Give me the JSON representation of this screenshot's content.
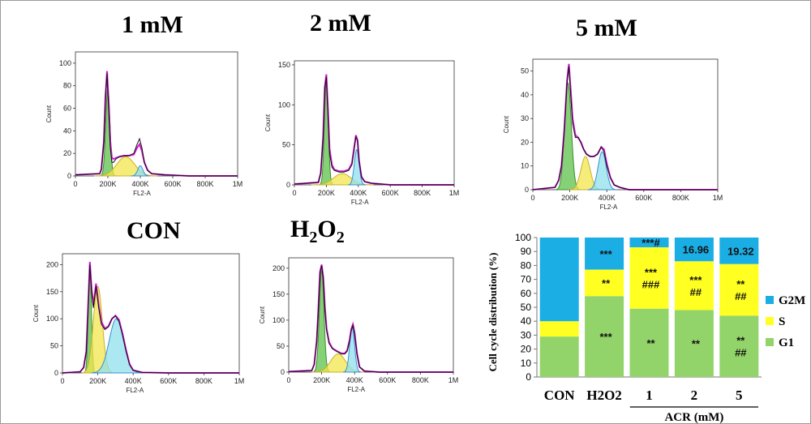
{
  "chart_data": [
    {
      "type": "histogram",
      "id": "h1",
      "title": "1 mM",
      "xlabel": "FL2-A",
      "ylabel": "Count",
      "xlim": [
        0,
        1000000
      ],
      "ylim": [
        0,
        110
      ],
      "xticks": [
        0,
        200000,
        400000,
        600000,
        800000,
        1000000
      ],
      "xtick_labels": [
        "0",
        "200K",
        "400K",
        "600K",
        "800K",
        "1M"
      ],
      "yticks": [
        0,
        20,
        40,
        60,
        80,
        100
      ],
      "ytick_labels": [
        "0",
        "20",
        "40",
        "60",
        "80",
        "100"
      ],
      "x": [
        0,
        150000,
        160000,
        175000,
        185000,
        195000,
        205000,
        215000,
        225000,
        235000,
        250000,
        270000,
        300000,
        330000,
        360000,
        380000,
        395000,
        410000,
        425000,
        445000,
        470000,
        550000,
        700000,
        1000000
      ],
      "counts": [
        1,
        2,
        6,
        30,
        70,
        91,
        60,
        25,
        12,
        12,
        15,
        17,
        18,
        18,
        20,
        28,
        33,
        25,
        12,
        5,
        2,
        1,
        0,
        0
      ],
      "fit_total": [
        1,
        2,
        6,
        30,
        70,
        93,
        64,
        30,
        16,
        15,
        16,
        17,
        18,
        18,
        19,
        25,
        28,
        22,
        12,
        5,
        2,
        1,
        0,
        0
      ],
      "g1": {
        "mean": 200000,
        "sd": 13000,
        "peak": 78
      },
      "s": {
        "mean": 310000,
        "sd": 55000,
        "peak": 17
      },
      "g2m": {
        "mean": 400000,
        "sd": 16000,
        "peak": 9
      }
    },
    {
      "type": "histogram",
      "id": "h2",
      "title": "2 mM",
      "xlabel": "FL2-A",
      "ylabel": "Count",
      "xlim": [
        0,
        1000000
      ],
      "ylim": [
        0,
        155
      ],
      "xticks": [
        0,
        200000,
        400000,
        600000,
        800000,
        1000000
      ],
      "xtick_labels": [
        "0",
        "200K",
        "400K",
        "600K",
        "800K",
        "1M"
      ],
      "yticks": [
        0,
        50,
        100,
        150
      ],
      "ytick_labels": [
        "0",
        "50",
        "100",
        "150"
      ],
      "x": [
        0,
        150000,
        165000,
        180000,
        190000,
        200000,
        210000,
        220000,
        235000,
        250000,
        280000,
        310000,
        340000,
        360000,
        375000,
        385000,
        395000,
        405000,
        420000,
        440000,
        480000,
        600000,
        1000000
      ],
      "counts": [
        1,
        3,
        15,
        60,
        120,
        135,
        90,
        40,
        22,
        18,
        16,
        16,
        18,
        25,
        45,
        60,
        55,
        30,
        10,
        4,
        2,
        0,
        0
      ],
      "fit_total": [
        1,
        3,
        15,
        60,
        122,
        138,
        95,
        45,
        25,
        19,
        17,
        17,
        19,
        27,
        48,
        62,
        56,
        30,
        10,
        4,
        2,
        0,
        0
      ],
      "g1": {
        "mean": 200000,
        "sd": 12000,
        "peak": 128
      },
      "s": {
        "mean": 300000,
        "sd": 55000,
        "peak": 14
      },
      "g2m": {
        "mean": 390000,
        "sd": 15000,
        "peak": 44
      }
    },
    {
      "type": "histogram",
      "id": "h5",
      "title": "5 mM",
      "xlabel": "FL2-A",
      "ylabel": "Count",
      "xlim": [
        0,
        1000000
      ],
      "ylim": [
        0,
        55
      ],
      "xticks": [
        0,
        200000,
        400000,
        600000,
        800000,
        1000000
      ],
      "xtick_labels": [
        "0",
        "200K",
        "400K",
        "600K",
        "800K",
        "1M"
      ],
      "yticks": [
        0,
        10,
        20,
        30,
        40,
        50
      ],
      "ytick_labels": [
        "0",
        "10",
        "20",
        "30",
        "40",
        "50"
      ],
      "x": [
        0,
        120000,
        140000,
        155000,
        170000,
        185000,
        195000,
        205000,
        215000,
        230000,
        245000,
        260000,
        275000,
        290000,
        310000,
        330000,
        350000,
        370000,
        385000,
        400000,
        420000,
        440000,
        470000,
        520000,
        650000,
        1000000
      ],
      "counts": [
        0,
        1,
        4,
        10,
        25,
        45,
        52,
        40,
        28,
        22,
        22,
        20,
        17,
        15,
        14,
        14,
        15,
        18,
        16,
        10,
        5,
        2,
        1,
        0,
        0,
        0
      ],
      "fit_total": [
        0,
        1,
        4,
        10,
        25,
        46,
        53,
        42,
        30,
        23,
        22,
        20,
        17,
        15,
        14,
        14,
        15,
        18,
        17,
        11,
        5,
        2,
        1,
        0,
        0,
        0
      ],
      "g1": {
        "mean": 190000,
        "sd": 18000,
        "peak": 45
      },
      "s": {
        "mean": 285000,
        "sd": 25000,
        "peak": 14
      },
      "g2m": {
        "mean": 375000,
        "sd": 22000,
        "peak": 16
      }
    },
    {
      "type": "histogram",
      "id": "hcon",
      "title": "CON",
      "xlabel": "FL2-A",
      "ylabel": "Count",
      "xlim": [
        0,
        1000000
      ],
      "ylim": [
        0,
        220
      ],
      "xticks": [
        0,
        200000,
        400000,
        600000,
        800000,
        1000000
      ],
      "xtick_labels": [
        "0",
        "200K",
        "400K",
        "600K",
        "800K",
        "1M"
      ],
      "yticks": [
        0,
        50,
        100,
        150,
        200
      ],
      "ytick_labels": [
        "0",
        "50",
        "100",
        "150",
        "200"
      ],
      "x": [
        0,
        100000,
        120000,
        135000,
        145000,
        155000,
        165000,
        175000,
        190000,
        205000,
        220000,
        240000,
        260000,
        280000,
        300000,
        320000,
        340000,
        360000,
        380000,
        400000,
        450000,
        600000,
        1000000
      ],
      "counts": [
        0,
        2,
        10,
        40,
        120,
        200,
        150,
        120,
        160,
        120,
        90,
        80,
        85,
        100,
        105,
        95,
        70,
        40,
        15,
        5,
        1,
        0,
        0
      ],
      "fit_total": [
        0,
        2,
        10,
        40,
        122,
        205,
        155,
        125,
        165,
        125,
        95,
        82,
        86,
        100,
        106,
        98,
        72,
        42,
        16,
        5,
        1,
        0,
        0
      ],
      "g1": {
        "mean": 155000,
        "sd": 9000,
        "peak": 190
      },
      "s": {
        "mean": 200000,
        "sd": 25000,
        "peak": 160
      },
      "g2m": {
        "mean": 305000,
        "sd": 40000,
        "peak": 100
      }
    },
    {
      "type": "histogram",
      "id": "hh2o2",
      "title": "H2O2",
      "xlabel": "FL2-A",
      "ylabel": "Count",
      "xlim": [
        0,
        1000000
      ],
      "ylim": [
        0,
        220
      ],
      "xticks": [
        0,
        200000,
        400000,
        600000,
        800000,
        1000000
      ],
      "xtick_labels": [
        "0",
        "200K",
        "400K",
        "600K",
        "800K",
        "1M"
      ],
      "yticks": [
        0,
        50,
        100,
        150,
        200
      ],
      "ytick_labels": [
        "0",
        "50",
        "100",
        "150",
        "200"
      ],
      "x": [
        0,
        140000,
        155000,
        170000,
        180000,
        190000,
        200000,
        210000,
        220000,
        230000,
        245000,
        265000,
        290000,
        320000,
        340000,
        355000,
        370000,
        380000,
        390000,
        400000,
        415000,
        430000,
        460000,
        550000,
        1000000
      ],
      "counts": [
        1,
        3,
        15,
        60,
        120,
        190,
        205,
        180,
        120,
        80,
        55,
        45,
        40,
        35,
        35,
        40,
        60,
        80,
        90,
        75,
        35,
        10,
        2,
        0,
        0
      ],
      "fit_total": [
        1,
        3,
        15,
        60,
        122,
        193,
        207,
        182,
        124,
        84,
        58,
        46,
        41,
        36,
        36,
        42,
        62,
        83,
        92,
        76,
        35,
        10,
        2,
        0,
        0
      ],
      "g1": {
        "mean": 200000,
        "sd": 14000,
        "peak": 195
      },
      "s": {
        "mean": 300000,
        "sd": 45000,
        "peak": 35
      },
      "g2m": {
        "mean": 385000,
        "sd": 15000,
        "peak": 85
      }
    },
    {
      "type": "bar",
      "stacked": true,
      "id": "bars",
      "categories": [
        "CON",
        "H2O2",
        "1",
        "2",
        "5"
      ],
      "group_label": "ACR (mM)",
      "ylabel": "Cell cycle distribution (%)",
      "ylim": [
        0,
        100
      ],
      "yticks": [
        0,
        10,
        20,
        30,
        40,
        50,
        60,
        70,
        80,
        90,
        100
      ],
      "ytick_labels": [
        "0",
        "10",
        "20",
        "30",
        "40",
        "50",
        "60",
        "70",
        "80",
        "90",
        "100"
      ],
      "legend_position": "right",
      "series": [
        {
          "name": "G1",
          "color": "#93d46a",
          "values": [
            29,
            58,
            49,
            48,
            44
          ],
          "annotations": [
            "",
            "***",
            "**",
            "**",
            "**\n##"
          ]
        },
        {
          "name": "S",
          "color": "#ffff22",
          "values": [
            11,
            19,
            44,
            35,
            37
          ],
          "annotations": [
            "",
            "**",
            "***\n###",
            "***\n##",
            "**\n##"
          ]
        },
        {
          "name": "G2M",
          "color": "#1aaee4",
          "values": [
            60,
            23,
            7,
            17,
            19
          ],
          "annotations": [
            "",
            "***",
            "***#",
            "16.96",
            "19.32"
          ]
        }
      ]
    }
  ]
}
